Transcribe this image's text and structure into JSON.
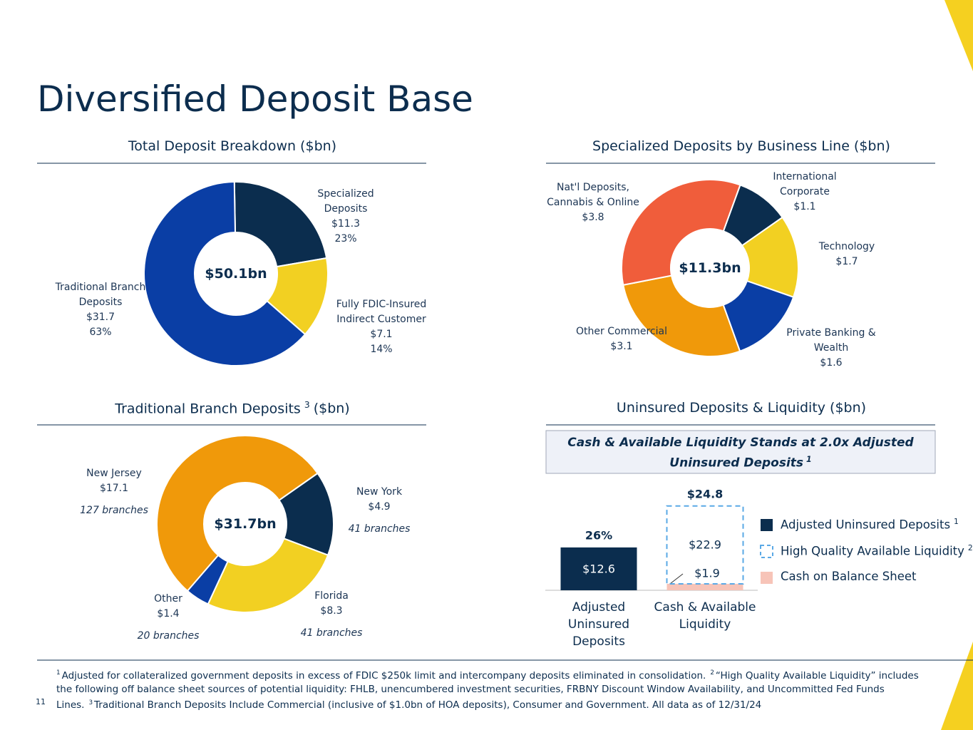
{
  "title": "Diversified Deposit Base",
  "chart_data": [
    {
      "type": "donut",
      "title": "Total Deposit Breakdown ($bn)",
      "center_label": "$50.1bn",
      "categories": [
        "Specialized Deposits",
        "Fully FDIC-Insured Indirect Customer",
        "Traditional Branch Deposits"
      ],
      "values": [
        11.3,
        7.1,
        31.7
      ],
      "value_labels": [
        "$11.3",
        "$7.1",
        "$31.7"
      ],
      "shares": [
        23,
        14,
        63
      ],
      "share_labels": [
        "23%",
        "14%",
        "63%"
      ],
      "colors": [
        "#0b2d4e",
        "#f2d022",
        "#0a3ea5"
      ]
    },
    {
      "type": "donut",
      "title": "Specialized Deposits by Business Line ($bn)",
      "center_label": "$11.3bn",
      "categories": [
        "International Corporate",
        "Technology",
        "Private Banking & Wealth",
        "Other Commercial",
        "Nat'l Deposits, Cannabis & Online"
      ],
      "values": [
        1.1,
        1.7,
        1.6,
        3.1,
        3.8
      ],
      "value_labels": [
        "$1.1",
        "$1.7",
        "$1.6",
        "$3.1",
        "$3.8"
      ],
      "colors": [
        "#0b2d4e",
        "#f2d022",
        "#0a3ea5",
        "#f0990a",
        "#f05d3b"
      ]
    },
    {
      "type": "donut",
      "title": "Traditional Branch Deposits",
      "title_footnote": "3",
      "title_unit": "($bn)",
      "center_label": "$31.7bn",
      "categories": [
        "New York",
        "Florida",
        "Other",
        "New Jersey"
      ],
      "values": [
        4.9,
        8.3,
        1.4,
        17.1
      ],
      "value_labels": [
        "$4.9",
        "$8.3",
        "$1.4",
        "$17.1"
      ],
      "branches": [
        41,
        41,
        20,
        127
      ],
      "branch_labels": [
        "41 branches",
        "41 branches",
        "20 branches",
        "127 branches"
      ],
      "colors": [
        "#0b2d4e",
        "#f2d022",
        "#0a3ea5",
        "#f0990a"
      ]
    },
    {
      "type": "bar",
      "title": "Uninsured Deposits & Liquidity ($bn)",
      "callout": "Cash & Available Liquidity Stands at 2.0x Adjusted Uninsured Deposits",
      "callout_footnote": "1",
      "categories": [
        "Adjusted Uninsured Deposits",
        "Cash & Available Liquidity"
      ],
      "series": [
        {
          "name": "Adjusted Uninsured Deposits",
          "footnote": "1",
          "color": "#0b2d4e",
          "values": [
            12.6,
            null
          ],
          "value_labels": [
            "$12.6",
            null
          ]
        },
        {
          "name": "High Quality Available Liquidity",
          "footnote": "2",
          "color": "#5aa9e6",
          "style": "dashed",
          "values": [
            null,
            22.9
          ],
          "value_labels": [
            null,
            "$22.9"
          ]
        },
        {
          "name": "Cash on Balance Sheet",
          "color": "#f7c4b8",
          "values": [
            null,
            1.9
          ],
          "value_labels": [
            null,
            "$1.9"
          ]
        }
      ],
      "bar_annotations": [
        "26%",
        "$24.8"
      ],
      "ylim": [
        0,
        26
      ]
    }
  ],
  "footnotes": [
    {
      "mark": "1",
      "text": "Adjusted for collateralized government deposits in excess of FDIC $250k limit and intercompany deposits eliminated in consolidation."
    },
    {
      "mark": "2",
      "text": "“High Quality Available Liquidity” includes the following off balance sheet sources of potential liquidity: FHLB, unencumbered investment securities, FRBNY Discount Window Availability, and Uncommitted Fed Funds Lines."
    },
    {
      "mark": "3",
      "text": "Traditional Branch Deposits Include Commercial (inclusive of $1.0bn of HOA deposits), Consumer and Government.  All data as of 12/31/24"
    }
  ],
  "page_number": "11"
}
